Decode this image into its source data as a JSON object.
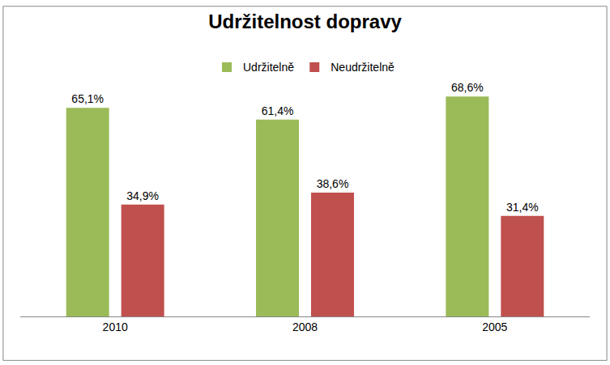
{
  "chart_data": {
    "type": "bar",
    "title": "Udržitelnost dopravy",
    "categories": [
      "2010",
      "2008",
      "2005"
    ],
    "series": [
      {
        "name": "Udržitelně",
        "color": "#9bbb59",
        "values": [
          65.1,
          61.4,
          68.6
        ],
        "value_labels": [
          "65,1%",
          "61,4%",
          "68,6%"
        ]
      },
      {
        "name": "Neudržitelně",
        "color": "#c0504d",
        "values": [
          34.9,
          38.6,
          31.4
        ],
        "value_labels": [
          "34,9%",
          "38,6%",
          "31,4%"
        ]
      }
    ],
    "data_labels": true,
    "tick_labels": "x",
    "grid": false,
    "legend": "top"
  }
}
